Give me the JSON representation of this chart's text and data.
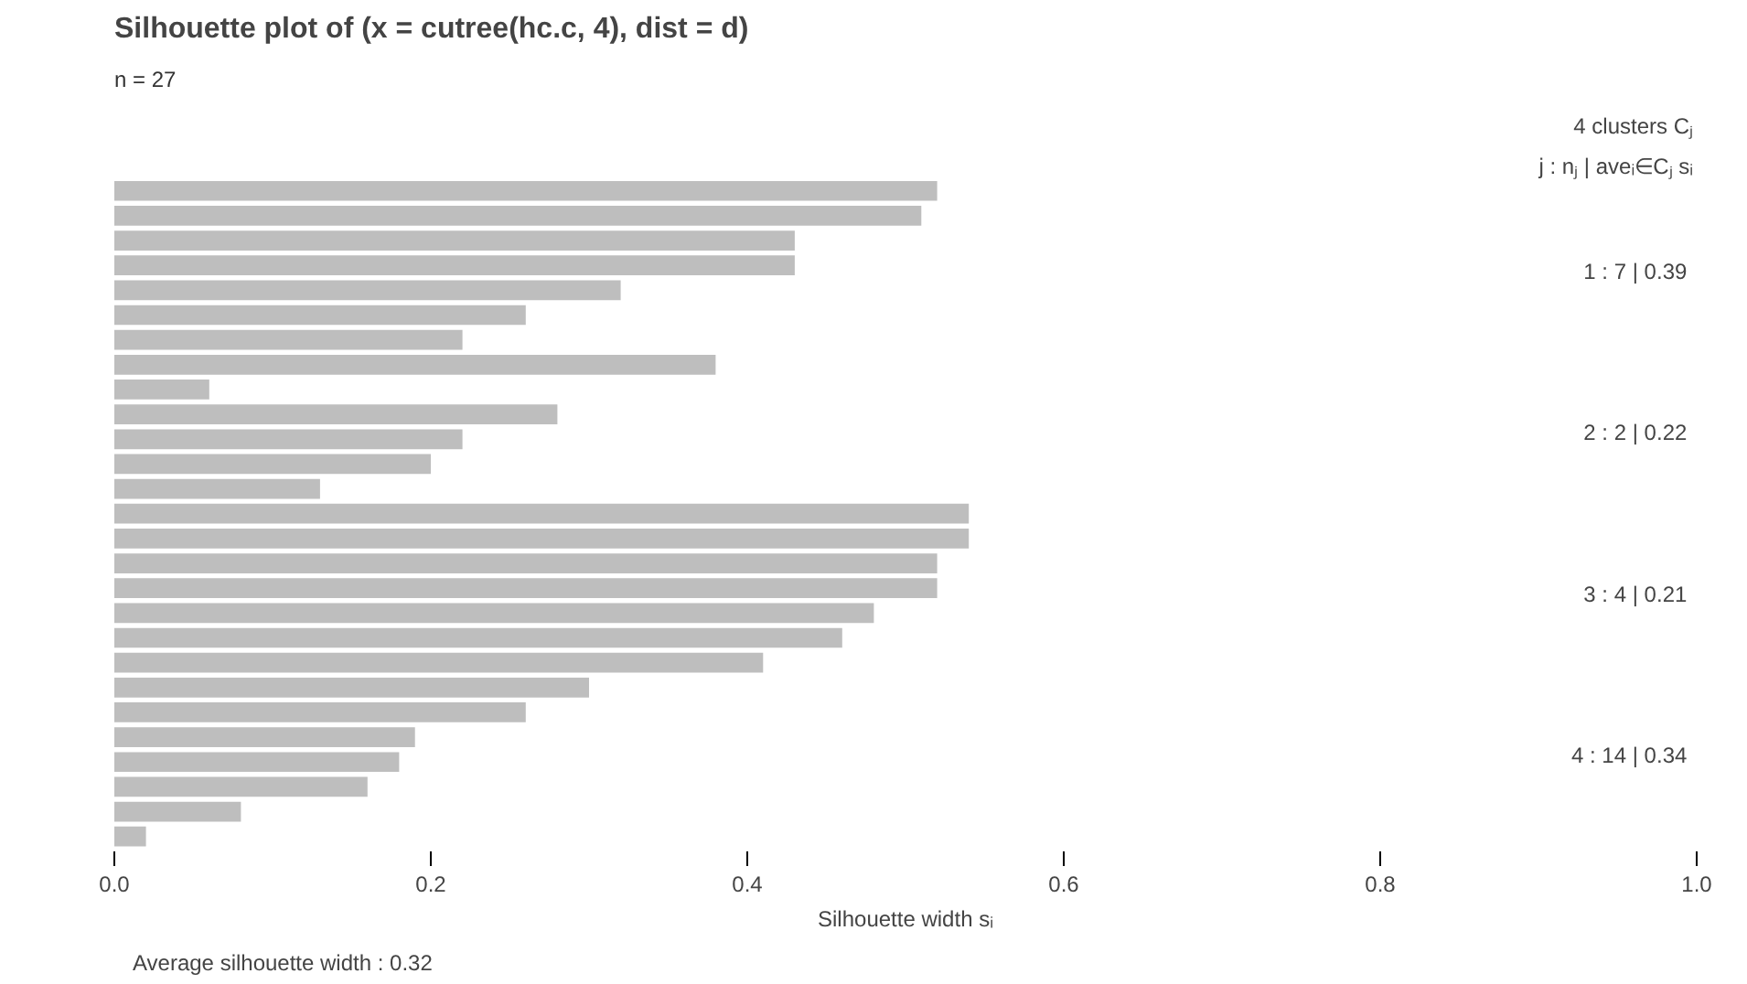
{
  "chart_data": {
    "type": "bar",
    "orientation": "horizontal",
    "title": "Silhouette plot of (x = cutree(hc.c, 4), dist = d)",
    "subtitle": "n = 27",
    "xlabel": "Silhouette width sᵢ",
    "categories": [
      null,
      null,
      null,
      null,
      null,
      null,
      null,
      null,
      null,
      null,
      null,
      null,
      null,
      null,
      null,
      null,
      null,
      null,
      null,
      null,
      null,
      null,
      null,
      null,
      null,
      null,
      null
    ],
    "values": [
      0.52,
      0.51,
      0.43,
      0.43,
      0.32,
      0.26,
      0.22,
      0.38,
      0.06,
      0.28,
      0.22,
      0.2,
      0.13,
      0.54,
      0.54,
      0.52,
      0.52,
      0.48,
      0.46,
      0.41,
      0.3,
      0.26,
      0.19,
      0.18,
      0.16,
      0.08,
      0.02
    ],
    "color": "#bebebe",
    "xlim": [
      0,
      1
    ],
    "xticks": [
      {
        "value": 0,
        "label": "0.0"
      },
      {
        "value": 0.2,
        "label": "0.2"
      },
      {
        "value": 0.4,
        "label": "0.4"
      },
      {
        "value": 0.6,
        "label": "0.6"
      },
      {
        "value": 0.8,
        "label": "0.8"
      },
      {
        "value": 1,
        "label": "1.0"
      }
    ],
    "grid": false,
    "annotations": [
      "4 clusters Cⱼ",
      "j : nⱼ | aveᵢ∈Cⱼ sᵢ",
      "1 :  7 | 0.39",
      "2 :  2 | 0.22",
      "3 :  4 | 0.21",
      "4 :  14 | 0.34",
      "Average silhouette width : 0.32"
    ]
  }
}
